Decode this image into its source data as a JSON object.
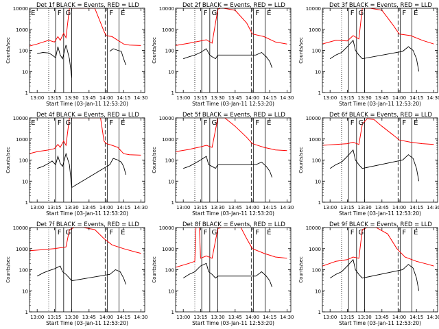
{
  "figure": {
    "xlabel": "Start Time (03-Jan-11 12:53:20)",
    "ylabel": "Counts/sec",
    "x_tick_labels": [
      "13:00",
      "13:15",
      "13:30",
      "13:45",
      "14:00",
      "14:15",
      "14:30"
    ],
    "y_tick_labels": [
      "1",
      "10",
      "100",
      "1000",
      "10000"
    ]
  },
  "colors": {
    "events": "#000000",
    "lld": "#ff0000",
    "axes": "#000000"
  },
  "chart_data": [
    {
      "type": "line",
      "title": "Det 1f BLACK = Events, RED = LLD",
      "xlabel": "Start Time (03-Jan-11 12:53:20)",
      "ylabel": "Counts/sec",
      "x_range": [
        "12:53:20",
        "14:33:20"
      ],
      "y_scale": "log",
      "ylim": [
        1,
        10000
      ],
      "markers": [
        "E",
        "F",
        "G",
        "F",
        "E"
      ],
      "series": [
        {
          "color": "red",
          "x": [
            "12:53:20",
            "13:00",
            "13:10",
            "13:15",
            "13:18",
            "13:20",
            "13:23",
            "13:25",
            "13:28",
            "13:30",
            "13:32",
            "13:35",
            "13:40",
            "13:50",
            "13:58",
            "14:00",
            "14:05",
            "14:10",
            "14:15",
            "14:20",
            "14:30"
          ],
          "values": [
            160,
            200,
            300,
            250,
            450,
            300,
            650,
            400,
            10000,
            10000,
            10000,
            10000,
            10000,
            10000,
            800,
            500,
            450,
            300,
            200,
            180,
            170
          ]
        },
        {
          "color": "black",
          "x": [
            "13:00",
            "13:05",
            "13:10",
            "13:13",
            "13:16",
            "13:18",
            "13:20",
            "13:22",
            "13:25",
            "13:28",
            "13:30",
            "13:32",
            "14:03",
            "14:06",
            "14:10",
            "14:13",
            "14:15",
            "14:17"
          ],
          "values": [
            70,
            80,
            75,
            60,
            45,
            150,
            60,
            40,
            180,
            40,
            5,
            null,
            90,
            120,
            100,
            90,
            40,
            20
          ]
        }
      ]
    },
    {
      "type": "line",
      "title": "Det 2f BLACK = Events, RED = LLD",
      "xlabel": "Start Time (03-Jan-11 12:53:20)",
      "ylabel": "Counts/sec",
      "x_range": [
        "12:53:20",
        "14:33:20"
      ],
      "y_scale": "log",
      "ylim": [
        1,
        10000
      ],
      "markers": [
        "F",
        "G",
        "F",
        "E"
      ],
      "series": [
        {
          "color": "red",
          "x": [
            "12:53:20",
            "13:05",
            "13:15",
            "13:20",
            "13:25",
            "13:30",
            "13:32",
            "13:35",
            "13:45",
            "13:55",
            "14:00",
            "14:10",
            "14:20",
            "14:30"
          ],
          "values": [
            170,
            220,
            280,
            320,
            220,
            9000,
            10000,
            10000,
            8000,
            2000,
            600,
            450,
            250,
            200
          ]
        },
        {
          "color": "black",
          "x": [
            "13:00",
            "13:05",
            "13:10",
            "13:15",
            "13:20",
            "13:23",
            "13:25",
            "13:28",
            "13:30",
            "14:03",
            "14:08",
            "14:12",
            "14:15",
            "14:17"
          ],
          "values": [
            40,
            50,
            60,
            80,
            120,
            60,
            50,
            40,
            60,
            60,
            80,
            50,
            30,
            15
          ]
        }
      ]
    },
    {
      "type": "line",
      "title": "Det 3f BLACK = Events, RED = LLD",
      "xlabel": "Start Time (03-Jan-11 12:53:20)",
      "ylabel": "Counts/sec",
      "x_range": [
        "12:53:20",
        "14:33:20"
      ],
      "y_scale": "log",
      "ylim": [
        1,
        10000
      ],
      "markers": [
        "F",
        "G",
        "F",
        "E"
      ],
      "series": [
        {
          "color": "red",
          "x": [
            "12:53:20",
            "13:05",
            "13:15",
            "13:20",
            "13:25",
            "13:28",
            "13:30",
            "13:35",
            "13:45",
            "13:55",
            "14:00",
            "14:10",
            "14:20",
            "14:30"
          ],
          "values": [
            200,
            300,
            280,
            500,
            350,
            10000,
            10000,
            10000,
            8000,
            1500,
            600,
            500,
            300,
            200
          ]
        },
        {
          "color": "black",
          "x": [
            "13:00",
            "13:05",
            "13:10",
            "13:15",
            "13:20",
            "13:22",
            "13:25",
            "13:28",
            "14:03",
            "14:08",
            "14:12",
            "14:15",
            "14:17"
          ],
          "values": [
            40,
            60,
            80,
            150,
            300,
            100,
            60,
            40,
            90,
            150,
            100,
            40,
            10
          ]
        }
      ]
    },
    {
      "type": "line",
      "title": "Det 4f BLACK = Events, RED = LLD",
      "xlabel": "Start Time (03-Jan-11 12:53:20)",
      "ylabel": "Counts/sec",
      "x_range": [
        "12:53:20",
        "14:33:20"
      ],
      "y_scale": "log",
      "ylim": [
        1,
        10000
      ],
      "markers": [
        "E",
        "F",
        "G",
        "F",
        "E"
      ],
      "series": [
        {
          "color": "red",
          "x": [
            "12:53:20",
            "13:00",
            "13:10",
            "13:15",
            "13:18",
            "13:20",
            "13:23",
            "13:25",
            "13:28",
            "13:30",
            "13:40",
            "13:55",
            "13:58",
            "14:00",
            "14:05",
            "14:10",
            "14:15",
            "14:20",
            "14:30"
          ],
          "values": [
            200,
            250,
            300,
            350,
            550,
            400,
            800,
            500,
            10000,
            10000,
            10000,
            10000,
            800,
            600,
            500,
            400,
            200,
            180,
            170
          ]
        },
        {
          "color": "black",
          "x": [
            "13:00",
            "13:05",
            "13:10",
            "13:13",
            "13:16",
            "13:18",
            "13:20",
            "13:22",
            "13:25",
            "13:28",
            "13:30",
            "14:03",
            "14:06",
            "14:10",
            "14:13",
            "14:15",
            "14:17"
          ],
          "values": [
            40,
            50,
            70,
            90,
            60,
            150,
            70,
            50,
            200,
            60,
            5,
            60,
            120,
            100,
            80,
            50,
            20
          ]
        }
      ]
    },
    {
      "type": "line",
      "title": "Det 5f BLACK = Events, RED = LLD",
      "xlabel": "Start Time (03-Jan-11 12:53:20)",
      "ylabel": "Counts/sec",
      "x_range": [
        "12:53:20",
        "14:33:20"
      ],
      "y_scale": "log",
      "ylim": [
        1,
        10000
      ],
      "markers": [
        "F",
        "G",
        "F",
        "E"
      ],
      "series": [
        {
          "color": "red",
          "x": [
            "12:53:20",
            "13:05",
            "13:15",
            "13:20",
            "13:25",
            "13:30",
            "13:33",
            "13:36",
            "13:45",
            "13:55",
            "14:00",
            "14:10",
            "14:20",
            "14:30"
          ],
          "values": [
            250,
            320,
            420,
            500,
            400,
            10000,
            10000,
            10000,
            4000,
            1200,
            600,
            400,
            300,
            280
          ]
        },
        {
          "color": "black",
          "x": [
            "13:00",
            "13:05",
            "13:10",
            "13:15",
            "13:20",
            "13:22",
            "13:25",
            "13:28",
            "13:30",
            "14:03",
            "14:08",
            "14:12",
            "14:15",
            "14:17"
          ],
          "values": [
            40,
            50,
            70,
            100,
            150,
            60,
            50,
            40,
            60,
            60,
            80,
            50,
            30,
            15
          ]
        }
      ]
    },
    {
      "type": "line",
      "title": "Det 6f BLACK = Events, RED = LLD",
      "xlabel": "Start Time (03-Jan-11 12:53:20)",
      "ylabel": "Counts/sec",
      "x_range": [
        "12:53:20",
        "14:33:20"
      ],
      "y_scale": "log",
      "ylim": [
        1,
        10000
      ],
      "markers": [
        "F",
        "G",
        "F",
        "E"
      ],
      "series": [
        {
          "color": "red",
          "x": [
            "12:53:20",
            "13:05",
            "13:15",
            "13:20",
            "13:25",
            "13:28",
            "13:32",
            "13:38",
            "13:45",
            "13:55",
            "14:00",
            "14:10",
            "14:20",
            "14:30"
          ],
          "values": [
            500,
            550,
            600,
            700,
            550,
            5000,
            9000,
            8500,
            4000,
            1500,
            900,
            700,
            600,
            550
          ]
        },
        {
          "color": "black",
          "x": [
            "13:00",
            "13:05",
            "13:10",
            "13:15",
            "13:20",
            "13:22",
            "13:25",
            "13:28",
            "14:03",
            "14:08",
            "14:12",
            "14:15",
            "14:17"
          ],
          "values": [
            40,
            60,
            80,
            150,
            300,
            100,
            60,
            40,
            100,
            180,
            120,
            40,
            10
          ]
        }
      ]
    },
    {
      "type": "line",
      "title": "Det 7f BLACK = Events, RED = LLD",
      "xlabel": "Start Time (03-Jan-11 12:53:20)",
      "ylabel": "Counts/sec",
      "x_range": [
        "12:53:20",
        "14:33:20"
      ],
      "y_scale": "log",
      "ylim": [
        1,
        10000
      ],
      "markers": [
        "F",
        "G",
        "F",
        "E"
      ],
      "series": [
        {
          "color": "red",
          "x": [
            "12:53:20",
            "13:05",
            "13:15",
            "13:20",
            "13:25",
            "13:28",
            "13:32",
            "13:40",
            "13:50",
            "13:58",
            "14:05",
            "14:15",
            "14:25",
            "14:30"
          ],
          "values": [
            800,
            900,
            1000,
            1100,
            1200,
            8000,
            10000,
            10000,
            8000,
            3000,
            1500,
            1000,
            700,
            600
          ]
        },
        {
          "color": "black",
          "x": [
            "13:00",
            "13:05",
            "13:10",
            "13:15",
            "13:20",
            "13:22",
            "13:25",
            "13:28",
            "13:30",
            "14:03",
            "14:08",
            "14:12",
            "14:15",
            "14:17"
          ],
          "values": [
            50,
            70,
            90,
            110,
            150,
            80,
            60,
            40,
            30,
            60,
            100,
            80,
            40,
            20
          ]
        }
      ]
    },
    {
      "type": "line",
      "title": "Det 8f BLACK = Events, RED = LLD",
      "xlabel": "Start Time (03-Jan-11 12:53:20)",
      "ylabel": "Counts/sec",
      "x_range": [
        "12:53:20",
        "14:33:20"
      ],
      "y_scale": "log",
      "ylim": [
        1,
        10000
      ],
      "markers": [
        "F",
        "G",
        "F",
        "E"
      ],
      "series": [
        {
          "color": "red",
          "x": [
            "12:53:20",
            "13:05",
            "13:10",
            "13:11",
            "13:14",
            "13:15",
            "13:20",
            "13:25",
            "13:30",
            "13:33",
            "13:40",
            "13:50",
            "13:55",
            "14:00",
            "14:10",
            "14:20",
            "14:30"
          ],
          "values": [
            130,
            200,
            250,
            10000,
            10000,
            350,
            450,
            350,
            9000,
            10000,
            10000,
            10000,
            3000,
            1000,
            600,
            400,
            350
          ]
        },
        {
          "color": "black",
          "x": [
            "13:00",
            "13:05",
            "13:10",
            "13:15",
            "13:20",
            "13:22",
            "13:25",
            "13:28",
            "13:30",
            "14:03",
            "14:08",
            "14:12",
            "14:15",
            "14:17"
          ],
          "values": [
            40,
            60,
            80,
            150,
            200,
            80,
            60,
            40,
            50,
            50,
            80,
            50,
            30,
            15
          ]
        }
      ]
    },
    {
      "type": "line",
      "title": "Det 9f BLACK = Events, RED = LLD",
      "xlabel": "Start Time (03-Jan-11 12:53:20)",
      "ylabel": "Counts/sec",
      "x_range": [
        "12:53:20",
        "14:33:20"
      ],
      "y_scale": "log",
      "ylim": [
        1,
        10000
      ],
      "markers": [
        "F",
        "G",
        "F",
        "E"
      ],
      "series": [
        {
          "color": "red",
          "x": [
            "12:53:20",
            "13:05",
            "13:15",
            "13:20",
            "13:25",
            "13:28",
            "13:32",
            "13:40",
            "13:50",
            "13:58",
            "14:05",
            "14:15",
            "14:25",
            "14:30"
          ],
          "values": [
            150,
            250,
            300,
            400,
            350,
            8000,
            10000,
            10000,
            5000,
            1000,
            400,
            250,
            180,
            150
          ]
        },
        {
          "color": "black",
          "x": [
            "13:00",
            "13:05",
            "13:10",
            "13:15",
            "13:20",
            "13:22",
            "13:25",
            "13:28",
            "14:03",
            "14:08",
            "14:12",
            "14:15",
            "14:17"
          ],
          "values": [
            40,
            60,
            80,
            150,
            300,
            100,
            60,
            40,
            100,
            180,
            120,
            40,
            10
          ]
        }
      ]
    }
  ]
}
